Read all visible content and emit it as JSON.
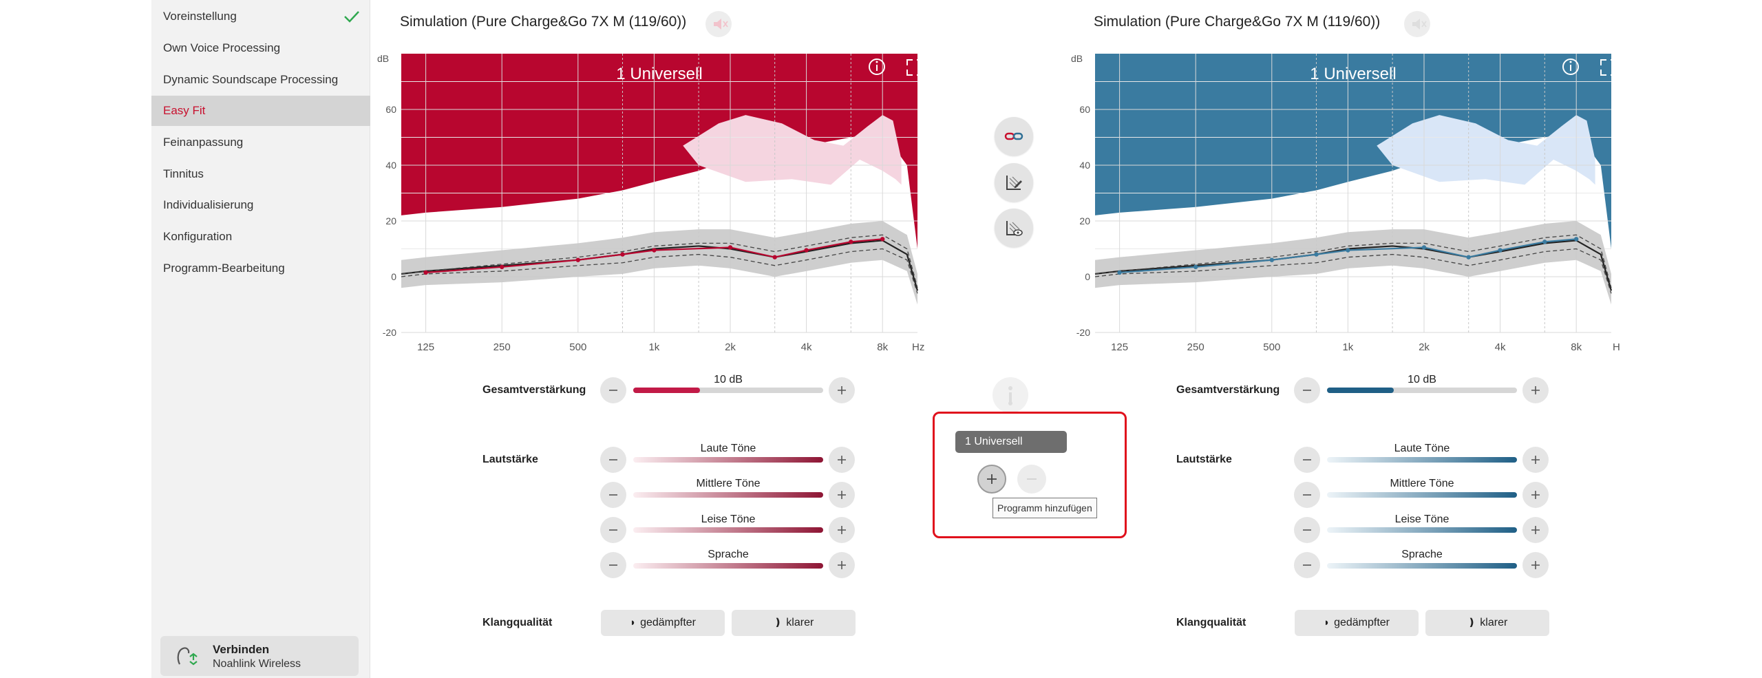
{
  "sidebar": {
    "items": [
      {
        "label": "Voreinstellung",
        "checked": true
      },
      {
        "label": "Own Voice Processing"
      },
      {
        "label": "Dynamic Soundscape Processing"
      },
      {
        "label": "Easy Fit",
        "active": true
      },
      {
        "label": "Feinanpassung"
      },
      {
        "label": "Tinnitus"
      },
      {
        "label": "Individualisierung"
      },
      {
        "label": "Konfiguration"
      },
      {
        "label": "Programm-Bearbeitung"
      }
    ],
    "connect": {
      "title": "Verbinden",
      "subtitle": "Noahlink Wireless",
      "icon": "hearing-aid-connect-icon"
    }
  },
  "left_panel": {
    "title": "Simulation (Pure Charge&Go 7X M (119/60))",
    "speaker_icon": "speaker-muted-icon",
    "chart_label": "1 Universell",
    "accent": "#b8062f",
    "band_fill": "#f5d5e0"
  },
  "right_panel": {
    "title": "Simulation (Pure Charge&Go 7X M (119/60))",
    "speaker_icon": "speaker-muted-icon",
    "chart_label": "1 Universell",
    "accent": "#3a7ba0",
    "band_fill": "#d9e6f7"
  },
  "center": {
    "link_icon": "link-sides-icon",
    "edit_icon": "edit-curve-icon",
    "view_icon": "view-curve-icon",
    "divide_icon": "divide-icon",
    "program": {
      "chip_label": "1  Universell",
      "add_icon": "plus-icon",
      "remove_icon": "minus-icon",
      "add_tooltip": "Programm hinzufügen"
    }
  },
  "controls": {
    "gain_label": "Gesamtverstärkung",
    "gain_value": "10 dB",
    "gain_fill_fraction": 0.35,
    "volume_label": "Lautstärke",
    "sliders": [
      "Laute Töne",
      "Mittlere Töne",
      "Leise Töne",
      "Sprache"
    ],
    "quality_label": "Klangqualität",
    "duller": "gedämpfter",
    "clearer": "klarer"
  },
  "chart_data": [
    {
      "type": "line",
      "title": "1 Universell",
      "xlabel": "Hz",
      "ylabel": "dB",
      "x_ticks": [
        "125",
        "250",
        "500",
        "1k",
        "2k",
        "4k",
        "8k"
      ],
      "y_ticks": [
        60,
        40,
        20,
        0,
        -20
      ],
      "ylim": [
        -20,
        80
      ],
      "x_freq": [
        100,
        125,
        250,
        500,
        750,
        1000,
        1500,
        2000,
        3000,
        4000,
        6000,
        8000,
        10000,
        11000
      ],
      "series": [
        {
          "values": [
            1,
            2,
            4,
            6,
            8,
            10,
            11,
            10,
            7,
            9,
            12,
            13,
            8,
            -5
          ]
        },
        {
          "values": [
            1,
            2,
            4.5,
            7,
            9,
            11,
            12,
            12,
            9,
            11,
            14,
            15,
            10,
            -4
          ]
        },
        {
          "values": [
            0,
            1,
            2,
            4,
            5,
            7,
            8,
            7,
            4,
            6,
            9,
            10,
            6,
            -6
          ]
        }
      ],
      "markers": {
        "x_freq": [
          125,
          250,
          500,
          750,
          1000,
          2000,
          3000,
          4000,
          6000,
          8000
        ],
        "values": [
          1.5,
          3.5,
          6,
          8,
          9.5,
          10.5,
          7,
          9.5,
          12.5,
          13.5
        ]
      },
      "threshold_top": [
        22,
        23,
        25,
        28,
        31,
        34,
        38,
        42,
        46,
        47,
        50,
        52,
        40,
        10
      ]
    },
    {
      "type": "line",
      "title": "1 Universell",
      "xlabel": "H",
      "ylabel": "dB",
      "x_ticks": [
        "125",
        "250",
        "500",
        "1k",
        "2k",
        "4k",
        "8k"
      ],
      "y_ticks": [
        60,
        40,
        20,
        0,
        -20
      ],
      "ylim": [
        -20,
        80
      ],
      "x_freq": [
        100,
        125,
        250,
        500,
        750,
        1000,
        1500,
        2000,
        3000,
        4000,
        6000,
        8000,
        10000,
        11000
      ],
      "series": [
        {
          "values": [
            1,
            2,
            4,
            6,
            8,
            10,
            11,
            10,
            7,
            9,
            12,
            13,
            8,
            -5
          ]
        },
        {
          "values": [
            1,
            2,
            4.5,
            7,
            9,
            11,
            12,
            12,
            9,
            11,
            14,
            15,
            10,
            -4
          ]
        },
        {
          "values": [
            0,
            1,
            2,
            4,
            5,
            7,
            8,
            7,
            4,
            6,
            9,
            10,
            6,
            -6
          ]
        }
      ],
      "markers": {
        "x_freq": [
          125,
          250,
          500,
          750,
          1000,
          2000,
          3000,
          4000,
          6000,
          8000
        ],
        "values": [
          1.5,
          3.5,
          6,
          8,
          9.5,
          10.5,
          7,
          9.5,
          12.5,
          13.5
        ]
      },
      "threshold_top": [
        22,
        23,
        25,
        28,
        31,
        34,
        38,
        42,
        46,
        47,
        50,
        52,
        40,
        10
      ]
    }
  ]
}
